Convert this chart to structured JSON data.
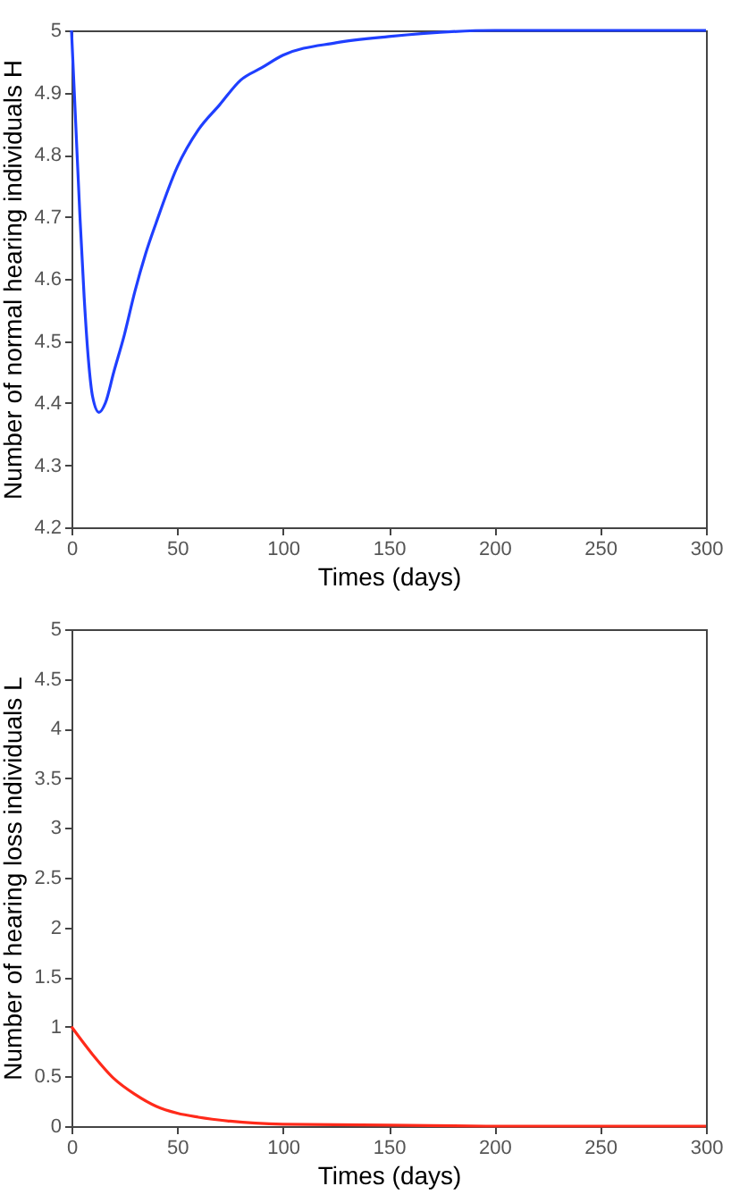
{
  "chart_data": [
    {
      "type": "line",
      "xlabel": "Times (days)",
      "ylabel": "Number of normal hearing individuals H",
      "x": [
        0,
        2,
        4,
        6,
        8,
        10,
        13,
        16,
        20,
        25,
        30,
        35,
        40,
        50,
        60,
        70,
        80,
        90,
        100,
        125,
        150,
        200,
        250,
        300
      ],
      "series": [
        {
          "color": "#1f3fff",
          "values": [
            5,
            4.85,
            4.7,
            4.57,
            4.47,
            4.41,
            4.385,
            4.4,
            4.45,
            4.51,
            4.58,
            4.64,
            4.69,
            4.78,
            4.84,
            4.88,
            4.92,
            4.94,
            4.96,
            4.98,
            4.99,
            5,
            5,
            5
          ]
        }
      ],
      "xlim": [
        0,
        300
      ],
      "xticks": [
        0,
        50,
        100,
        150,
        200,
        250,
        300
      ],
      "ylim": [
        4.2,
        5
      ],
      "yticks": [
        4.2,
        4.3,
        4.4,
        4.5,
        4.6,
        4.7,
        4.8,
        4.9,
        5
      ]
    },
    {
      "type": "line",
      "xlabel": "Times (days)",
      "ylabel": "Number of  hearing loss individuals L",
      "x": [
        0,
        10,
        20,
        30,
        40,
        50,
        60,
        75,
        100,
        150,
        200,
        300
      ],
      "series": [
        {
          "color": "#ff2a1a",
          "values": [
            1,
            0.72,
            0.48,
            0.32,
            0.2,
            0.13,
            0.09,
            0.05,
            0.02,
            0.01,
            0,
            0
          ]
        }
      ],
      "xlim": [
        0,
        300
      ],
      "xticks": [
        0,
        50,
        100,
        150,
        200,
        250,
        300
      ],
      "ylim": [
        0,
        5
      ],
      "yticks": [
        0,
        0.5,
        1,
        1.5,
        2,
        2.5,
        3,
        3.5,
        4,
        4.5,
        5
      ]
    }
  ]
}
